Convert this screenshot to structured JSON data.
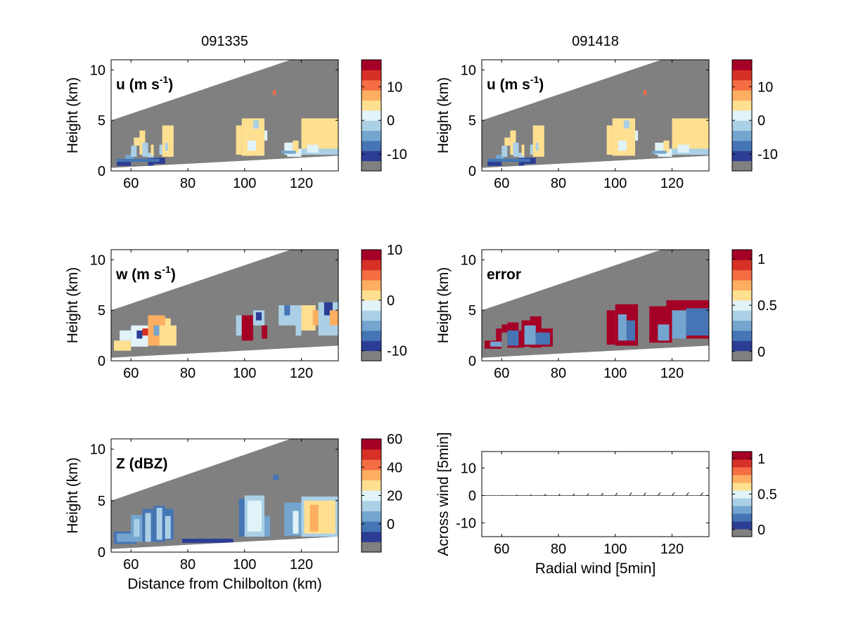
{
  "colors": {
    "scale": [
      "#2c3d96",
      "#4575b4",
      "#74a5cf",
      "#abd0e6",
      "#e1f3f8",
      "#fee090",
      "#fdae61",
      "#f46d43",
      "#d73027",
      "#a50026"
    ],
    "mask": "#808080",
    "frame": "#000000"
  },
  "chart_data": [
    {
      "type": "heatmap",
      "id": "u-091335",
      "title": "091335",
      "annotation": "u (m s",
      "annotation_sup": "-1",
      "annotation_end": ")",
      "field": "u",
      "xlabel": "",
      "ylabel": "Height (km)",
      "xlim": [
        53,
        133
      ],
      "ylim": [
        0,
        11
      ],
      "xticks": [
        "60",
        "80",
        "100",
        "120"
      ],
      "yticks": [
        "0",
        "5",
        "10"
      ],
      "colorbar": {
        "range": [
          -15,
          18
        ],
        "ticks": [
          "-10",
          "0",
          "10"
        ],
        "tick_values": [
          -10,
          0,
          10
        ]
      },
      "cells": [
        [
          55,
          0.5,
          68,
          0.9,
          -12
        ],
        [
          60,
          0.5,
          66,
          1.0,
          -14
        ],
        [
          66,
          0.7,
          72,
          1.3,
          -10
        ],
        [
          55,
          0.9,
          70,
          1.2,
          -7
        ],
        [
          58,
          1.2,
          61,
          1.6,
          -4
        ],
        [
          60,
          1.4,
          62,
          2.5,
          -1
        ],
        [
          61,
          2.5,
          63,
          3.3,
          3
        ],
        [
          63,
          1.6,
          65,
          4.0,
          4
        ],
        [
          64,
          1.4,
          66,
          2.8,
          -3
        ],
        [
          66,
          1.3,
          68,
          1.8,
          -1
        ],
        [
          67,
          1.5,
          68,
          2.6,
          3
        ],
        [
          70,
          1.6,
          72,
          2.6,
          -2
        ],
        [
          71,
          1.4,
          75,
          4.5,
          4
        ],
        [
          72,
          2.0,
          73,
          2.8,
          -1
        ],
        [
          97,
          1.6,
          99,
          4.5,
          4
        ],
        [
          99,
          1.5,
          107,
          5.2,
          4
        ],
        [
          101,
          2.0,
          104,
          3.0,
          1
        ],
        [
          103,
          4.2,
          105,
          5.0,
          -1
        ],
        [
          107,
          3.0,
          108,
          4.0,
          1
        ],
        [
          110,
          7.5,
          111,
          8.0,
          9
        ],
        [
          115,
          1.4,
          120,
          2.2,
          0
        ],
        [
          114,
          1.6,
          117,
          2.8,
          1
        ],
        [
          117,
          1.8,
          119,
          3.0,
          3
        ],
        [
          120,
          1.6,
          133,
          2.4,
          -2
        ],
        [
          120,
          2.2,
          133,
          5.2,
          4
        ],
        [
          122,
          1.8,
          126,
          2.6,
          1
        ],
        [
          113,
          1.7,
          118,
          2.0,
          -5
        ]
      ]
    },
    {
      "type": "heatmap",
      "id": "u-091418",
      "title": "091418",
      "annotation": "u (m s",
      "annotation_sup": "-1",
      "annotation_end": ")",
      "field": "u",
      "xlabel": "",
      "ylabel": "Height (km)",
      "xlim": [
        53,
        133
      ],
      "ylim": [
        0,
        11
      ],
      "xticks": [
        "60",
        "80",
        "100",
        "120"
      ],
      "yticks": [
        "0",
        "5",
        "10"
      ],
      "colorbar": {
        "range": [
          -15,
          18
        ],
        "ticks": [
          "-10",
          "0",
          "10"
        ],
        "tick_values": [
          -10,
          0,
          10
        ]
      },
      "cells": [
        [
          55,
          0.5,
          68,
          0.9,
          -12
        ],
        [
          60,
          0.5,
          66,
          1.0,
          -14
        ],
        [
          66,
          0.7,
          72,
          1.3,
          -10
        ],
        [
          55,
          0.9,
          70,
          1.2,
          -7
        ],
        [
          58,
          1.2,
          61,
          1.6,
          -4
        ],
        [
          60,
          1.4,
          62,
          2.5,
          -1
        ],
        [
          61,
          2.5,
          63,
          3.3,
          3
        ],
        [
          63,
          1.6,
          65,
          4.0,
          4
        ],
        [
          64,
          1.4,
          66,
          2.8,
          -3
        ],
        [
          66,
          1.3,
          68,
          1.8,
          -1
        ],
        [
          67,
          1.5,
          68,
          2.6,
          3
        ],
        [
          70,
          1.6,
          72,
          2.6,
          -2
        ],
        [
          71,
          1.4,
          75,
          4.5,
          4
        ],
        [
          72,
          2.0,
          73,
          2.8,
          -1
        ],
        [
          97,
          1.6,
          99,
          4.5,
          4
        ],
        [
          99,
          1.5,
          107,
          5.2,
          4
        ],
        [
          101,
          2.0,
          104,
          3.0,
          1
        ],
        [
          103,
          4.2,
          105,
          5.0,
          -1
        ],
        [
          107,
          3.0,
          108,
          4.0,
          1
        ],
        [
          110,
          7.5,
          111,
          8.0,
          9
        ],
        [
          115,
          1.4,
          120,
          2.2,
          0
        ],
        [
          114,
          1.6,
          117,
          2.8,
          1
        ],
        [
          117,
          1.8,
          119,
          3.0,
          3
        ],
        [
          120,
          1.6,
          133,
          2.4,
          -2
        ],
        [
          120,
          2.2,
          133,
          5.2,
          4
        ],
        [
          122,
          1.8,
          126,
          2.6,
          1
        ],
        [
          113,
          1.7,
          118,
          2.0,
          -5
        ]
      ]
    },
    {
      "type": "heatmap",
      "id": "w-091335",
      "title": "",
      "annotation": "w (m s",
      "annotation_sup": "-1",
      "annotation_end": ")",
      "field": "w",
      "xlabel": "",
      "ylabel": "Height (km)",
      "xlim": [
        53,
        133
      ],
      "ylim": [
        0,
        11
      ],
      "xticks": [
        "60",
        "80",
        "100",
        "120"
      ],
      "yticks": [
        "0",
        "5",
        "10"
      ],
      "colorbar": {
        "range": [
          -12,
          10
        ],
        "ticks": [
          "-10",
          "0",
          "10"
        ],
        "tick_values": [
          -10,
          0,
          10
        ]
      },
      "cells": [
        [
          54,
          1.0,
          60,
          2.0,
          0
        ],
        [
          56,
          2.0,
          60,
          3.0,
          -2
        ],
        [
          60,
          1.4,
          66,
          3.5,
          -1
        ],
        [
          62,
          2.2,
          64,
          3.0,
          -10
        ],
        [
          64,
          2.5,
          66,
          3.2,
          6
        ],
        [
          66,
          1.5,
          72,
          4.5,
          2
        ],
        [
          68,
          2.5,
          70,
          3.5,
          -6
        ],
        [
          70,
          1.5,
          76,
          3.5,
          1
        ],
        [
          72,
          3.0,
          74,
          4.2,
          0
        ],
        [
          97,
          2.5,
          99,
          4.5,
          -3
        ],
        [
          99,
          2.0,
          103,
          4.5,
          9
        ],
        [
          103,
          3.5,
          107,
          5.0,
          -4
        ],
        [
          104,
          4.0,
          106,
          4.8,
          -10
        ],
        [
          106,
          2.2,
          108,
          3.5,
          10
        ],
        [
          112,
          3.5,
          120,
          5.5,
          -3
        ],
        [
          114,
          4.5,
          116,
          5.5,
          -8
        ],
        [
          118,
          2.5,
          120,
          4.0,
          -4
        ],
        [
          120,
          3.0,
          125,
          5.5,
          0
        ],
        [
          124,
          3.5,
          126,
          5.0,
          3
        ],
        [
          126,
          2.5,
          133,
          5.8,
          -3
        ],
        [
          128,
          4.5,
          131,
          5.8,
          -10
        ],
        [
          130,
          3.5,
          133,
          5.0,
          2
        ]
      ]
    },
    {
      "type": "heatmap",
      "id": "error-091418",
      "title": "",
      "annotation": "error",
      "annotation_sup": "",
      "annotation_end": "",
      "field": "error",
      "xlabel": "",
      "ylabel": "Height (km)",
      "xlim": [
        53,
        133
      ],
      "ylim": [
        0,
        11
      ],
      "xticks": [
        "60",
        "80",
        "100",
        "120"
      ],
      "yticks": [
        "0",
        "5",
        "10"
      ],
      "colorbar": {
        "range": [
          -0.1,
          1.1
        ],
        "ticks": [
          "0",
          "0.5",
          "1"
        ],
        "tick_values": [
          0,
          0.5,
          1
        ]
      },
      "cells": [
        [
          54,
          1.2,
          58,
          2.0,
          1.05
        ],
        [
          58,
          1.2,
          60,
          3.2,
          1.05
        ],
        [
          60,
          2.8,
          62,
          3.6,
          1.05
        ],
        [
          62,
          1.3,
          66,
          3.8,
          1.05
        ],
        [
          66,
          1.3,
          68,
          3.0,
          1.05
        ],
        [
          67,
          1.4,
          70,
          4.0,
          1.05
        ],
        [
          70,
          1.3,
          74,
          4.4,
          1.05
        ],
        [
          74,
          1.4,
          78,
          3.2,
          1.05
        ],
        [
          56,
          1.4,
          60,
          1.9,
          0.3
        ],
        [
          62,
          1.5,
          66,
          3.0,
          0.2
        ],
        [
          68,
          1.6,
          72,
          3.5,
          0.3
        ],
        [
          72,
          1.6,
          77,
          2.8,
          0.2
        ],
        [
          97,
          1.6,
          100,
          5.0,
          1.05
        ],
        [
          100,
          1.5,
          108,
          5.6,
          1.05
        ],
        [
          101,
          2.0,
          104,
          4.6,
          0.3
        ],
        [
          104,
          2.0,
          107,
          4.0,
          0.2
        ],
        [
          112,
          1.8,
          120,
          5.4,
          1.05
        ],
        [
          118,
          2.2,
          133,
          6.0,
          1.05
        ],
        [
          120,
          2.2,
          125,
          5.0,
          0.3
        ],
        [
          125,
          2.5,
          133,
          5.2,
          0.2
        ],
        [
          115,
          2.0,
          119,
          3.6,
          0.3
        ]
      ]
    },
    {
      "type": "heatmap",
      "id": "z-091335",
      "title": "",
      "annotation": "Z (dBZ)",
      "annotation_sup": "",
      "annotation_end": "",
      "field": "Z",
      "xlabel": "Distance from Chilbolton (km)",
      "ylabel": "Height (km)",
      "xlim": [
        53,
        133
      ],
      "ylim": [
        0,
        11
      ],
      "xticks": [
        "60",
        "80",
        "100",
        "120"
      ],
      "yticks": [
        "0",
        "5",
        "10"
      ],
      "colorbar": {
        "range": [
          -20,
          60
        ],
        "ticks": [
          "0",
          "20",
          "40",
          "60"
        ],
        "tick_values": [
          0,
          20,
          40,
          60
        ]
      },
      "cells": [
        [
          54,
          0.8,
          62,
          2.0,
          -5
        ],
        [
          55,
          1.0,
          61,
          1.8,
          5
        ],
        [
          60,
          1.0,
          64,
          3.6,
          5
        ],
        [
          61,
          1.5,
          63,
          3.2,
          15
        ],
        [
          64,
          1.0,
          68,
          4.2,
          -5
        ],
        [
          65,
          1.0,
          67,
          3.8,
          10
        ],
        [
          68,
          1.0,
          72,
          4.5,
          -5
        ],
        [
          69,
          1.2,
          71,
          4.3,
          12
        ],
        [
          72,
          1.2,
          75,
          4.2,
          0
        ],
        [
          72,
          1.3,
          74,
          3.5,
          15
        ],
        [
          98,
          1.5,
          100,
          5.2,
          0
        ],
        [
          100,
          1.5,
          107,
          5.5,
          10
        ],
        [
          101,
          2.0,
          106,
          5.0,
          20
        ],
        [
          107,
          1.5,
          109,
          3.5,
          5
        ],
        [
          110,
          7.0,
          112,
          7.5,
          0
        ],
        [
          114,
          1.6,
          120,
          4.8,
          5
        ],
        [
          117,
          1.8,
          119,
          4.0,
          20
        ],
        [
          120,
          1.5,
          133,
          5.4,
          10
        ],
        [
          121,
          1.8,
          132,
          5.0,
          30
        ],
        [
          123,
          2.0,
          126,
          4.6,
          35
        ],
        [
          127,
          2.0,
          130,
          4.2,
          25
        ],
        [
          78,
          0.9,
          96,
          1.3,
          -10
        ]
      ]
    },
    {
      "type": "scatter",
      "id": "quiver",
      "title": "",
      "annotation": "",
      "annotation_sup": "",
      "annotation_end": "",
      "xlabel": "Radial wind [5min]",
      "ylabel": "Across wind [5min]",
      "xlim": [
        53,
        133
      ],
      "ylim": [
        -15,
        16
      ],
      "xticks": [
        "60",
        "80",
        "100",
        "120"
      ],
      "yticks": [
        "-10",
        "0",
        "10"
      ],
      "colorbar": {
        "range": [
          -0.1,
          1.1
        ],
        "ticks": [
          "0",
          "0.5",
          "1"
        ],
        "tick_values": [
          0,
          0.5,
          1
        ]
      },
      "x": [
        60,
        65,
        70,
        75,
        80,
        85,
        90,
        95,
        100,
        105,
        110,
        115,
        120,
        125,
        130
      ],
      "y": [
        0,
        0,
        0,
        0,
        0,
        0,
        0,
        0,
        0,
        0,
        0,
        0,
        0,
        0,
        0
      ],
      "u": [
        0.4,
        0.5,
        0.5,
        0.6,
        0.6,
        0.7,
        0.7,
        0.8,
        0.8,
        0.8,
        0.8,
        0.9,
        0.9,
        0.9,
        0.9
      ],
      "v": [
        0.1,
        0.2,
        0.3,
        0.4,
        0.5,
        0.6,
        0.7,
        0.8,
        0.9,
        1.0,
        1.0,
        1.0,
        1.0,
        1.0,
        1.0
      ]
    }
  ]
}
